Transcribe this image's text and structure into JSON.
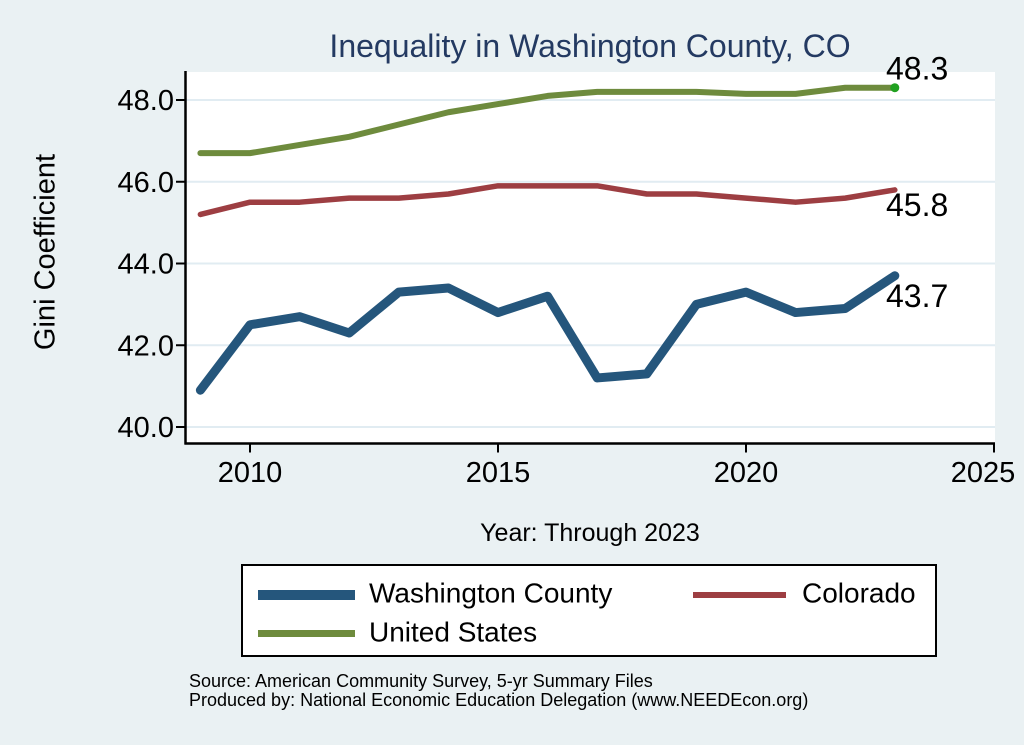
{
  "page": {
    "background_color": "#eaf1f3",
    "title_color": "#243a62"
  },
  "chart_data": {
    "type": "line",
    "title": "Inequality in Washington County, CO",
    "xlabel": "Year: Through 2023",
    "ylabel": "Gini Coefficient",
    "x": [
      2009,
      2010,
      2011,
      2012,
      2013,
      2014,
      2015,
      2016,
      2017,
      2018,
      2019,
      2020,
      2021,
      2022,
      2023
    ],
    "xticks": [
      2010,
      2015,
      2020,
      2025
    ],
    "ytick_labels": [
      "40.0",
      "42.0",
      "44.0",
      "46.0",
      "48.0"
    ],
    "xlim": [
      2008.7,
      2025.1
    ],
    "ylim": [
      39.6,
      48.8
    ],
    "grid": true,
    "gridline_color": "#e1ecf2",
    "legend_position": "bottom",
    "series": [
      {
        "name": "Washington County",
        "color": "#25567c",
        "line_width": 9,
        "end_label": "43.7",
        "values": [
          40.9,
          42.5,
          42.7,
          42.3,
          43.3,
          43.4,
          42.8,
          43.2,
          41.2,
          41.3,
          43.0,
          43.3,
          42.8,
          42.9,
          43.7
        ]
      },
      {
        "name": "Colorado",
        "color": "#9d3e42",
        "line_width": 5.5,
        "end_label": "45.8",
        "values": [
          45.2,
          45.5,
          45.5,
          45.6,
          45.6,
          45.7,
          45.9,
          45.9,
          45.9,
          45.7,
          45.7,
          45.6,
          45.5,
          45.6,
          45.8
        ]
      },
      {
        "name": "United States",
        "color": "#6e8b3d",
        "line_width": 6,
        "end_label": "48.3",
        "end_marker_color": "#21a121",
        "values": [
          46.7,
          46.7,
          46.9,
          47.1,
          47.4,
          47.7,
          47.9,
          48.1,
          48.2,
          48.2,
          48.2,
          48.15,
          48.15,
          48.3,
          48.3
        ]
      }
    ]
  },
  "footer": {
    "source_line": "Source: American Community Survey, 5-yr Summary Files",
    "produced_line": "Produced by: National Economic Education Delegation (www.NEEDEcon.org)"
  }
}
